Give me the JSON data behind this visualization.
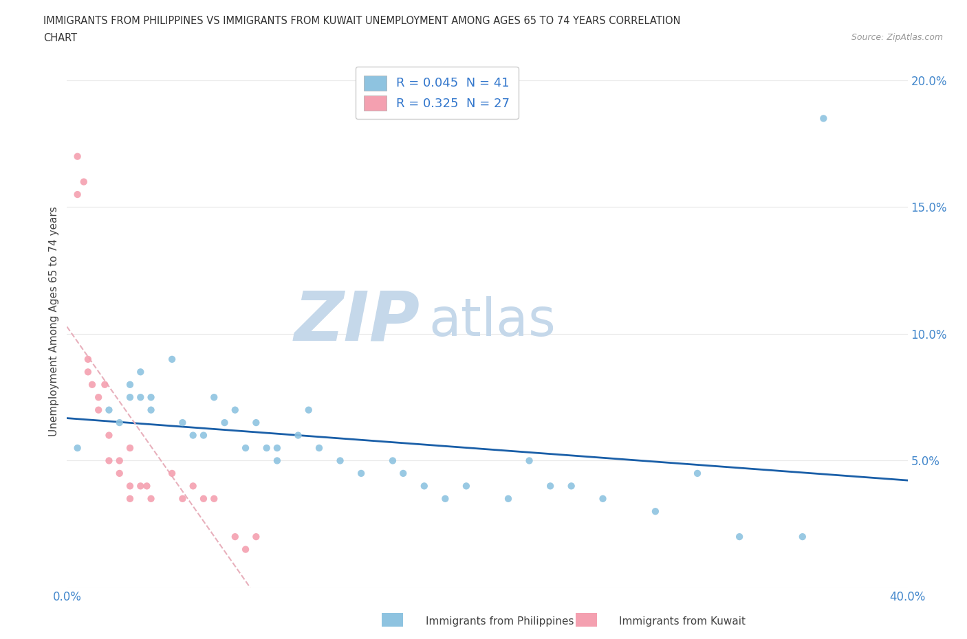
{
  "title_line1": "IMMIGRANTS FROM PHILIPPINES VS IMMIGRANTS FROM KUWAIT UNEMPLOYMENT AMONG AGES 65 TO 74 YEARS CORRELATION",
  "title_line2": "CHART",
  "source": "Source: ZipAtlas.com",
  "ylabel": "Unemployment Among Ages 65 to 74 years",
  "xlim": [
    0.0,
    0.4
  ],
  "ylim": [
    0.0,
    0.21
  ],
  "xticks": [
    0.0,
    0.1,
    0.2,
    0.3,
    0.4
  ],
  "xticklabels": [
    "0.0%",
    "",
    "",
    "",
    "40.0%"
  ],
  "yticks": [
    0.0,
    0.05,
    0.1,
    0.15,
    0.2
  ],
  "yticklabels": [
    "",
    "5.0%",
    "10.0%",
    "15.0%",
    "20.0%"
  ],
  "color_philippines": "#8ec3e0",
  "color_kuwait": "#f4a0b0",
  "color_trendline_philippines": "#1a5fa8",
  "color_trendline_kuwait": "#e8b0bc",
  "philippines_x": [
    0.005,
    0.02,
    0.025,
    0.03,
    0.03,
    0.035,
    0.035,
    0.04,
    0.04,
    0.05,
    0.055,
    0.06,
    0.065,
    0.07,
    0.075,
    0.08,
    0.085,
    0.09,
    0.095,
    0.1,
    0.1,
    0.11,
    0.115,
    0.12,
    0.13,
    0.14,
    0.155,
    0.16,
    0.17,
    0.18,
    0.19,
    0.21,
    0.22,
    0.23,
    0.24,
    0.255,
    0.28,
    0.3,
    0.32,
    0.35,
    0.36
  ],
  "philippines_y": [
    0.055,
    0.07,
    0.065,
    0.08,
    0.075,
    0.085,
    0.075,
    0.07,
    0.075,
    0.09,
    0.065,
    0.06,
    0.06,
    0.075,
    0.065,
    0.07,
    0.055,
    0.065,
    0.055,
    0.05,
    0.055,
    0.06,
    0.07,
    0.055,
    0.05,
    0.045,
    0.05,
    0.045,
    0.04,
    0.035,
    0.04,
    0.035,
    0.05,
    0.04,
    0.04,
    0.035,
    0.03,
    0.045,
    0.02,
    0.02,
    0.185
  ],
  "kuwait_x": [
    0.005,
    0.005,
    0.008,
    0.01,
    0.01,
    0.012,
    0.015,
    0.015,
    0.018,
    0.02,
    0.02,
    0.025,
    0.025,
    0.03,
    0.03,
    0.03,
    0.035,
    0.038,
    0.04,
    0.05,
    0.055,
    0.06,
    0.065,
    0.07,
    0.08,
    0.085,
    0.09
  ],
  "kuwait_y": [
    0.17,
    0.155,
    0.16,
    0.085,
    0.09,
    0.08,
    0.075,
    0.07,
    0.08,
    0.05,
    0.06,
    0.05,
    0.045,
    0.055,
    0.04,
    0.035,
    0.04,
    0.04,
    0.035,
    0.045,
    0.035,
    0.04,
    0.035,
    0.035,
    0.02,
    0.015,
    0.02
  ],
  "watermark_zip": "ZIP",
  "watermark_atlas": "atlas",
  "watermark_color_zip": "#c5d8ea",
  "watermark_color_atlas": "#c5d8ea",
  "bg_color": "#ffffff",
  "grid_color": "#e8e8e8",
  "tick_color": "#4488cc",
  "legend_label1": "R = 0.045  N = 41",
  "legend_label2": "R = 0.325  N = 27",
  "bottom_label1": "Immigrants from Philippines",
  "bottom_label2": "Immigrants from Kuwait"
}
